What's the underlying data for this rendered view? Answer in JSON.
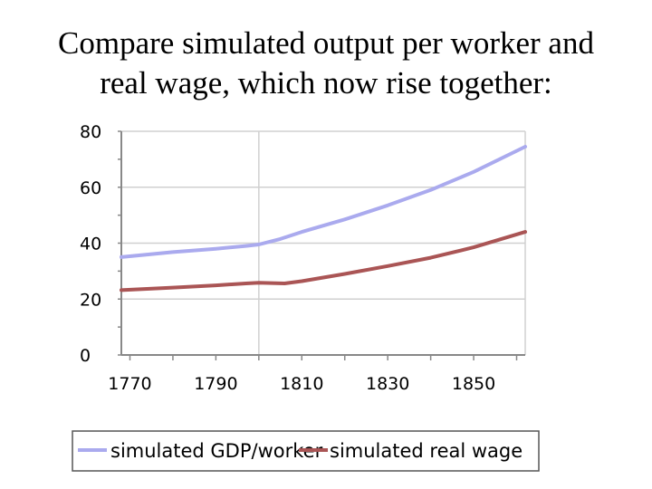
{
  "title_lines": [
    "Compare simulated output per worker and",
    "real wage, which now rise together:"
  ],
  "chart_data": {
    "type": "line",
    "title": "",
    "xlabel": "",
    "ylabel": "",
    "xlim": [
      1768,
      1862
    ],
    "ylim": [
      0,
      80
    ],
    "x_ticks": [
      1770,
      1790,
      1810,
      1830,
      1850
    ],
    "y_ticks": [
      0,
      20,
      40,
      60,
      80
    ],
    "grid": "vertical-and-horizontal",
    "legend_position": "bottom",
    "series": [
      {
        "name": "simulated GDP/worker",
        "color": "#aaaaee",
        "x": [
          1768,
          1780,
          1790,
          1797,
          1800,
          1805,
          1810,
          1820,
          1830,
          1840,
          1850,
          1862
        ],
        "y": [
          35,
          36.8,
          38,
          39,
          39.5,
          41.5,
          44,
          48.5,
          53.5,
          59,
          65.5,
          74.5
        ]
      },
      {
        "name": "simulated real wage",
        "color": "#aa5555",
        "x": [
          1768,
          1780,
          1790,
          1797,
          1800,
          1806,
          1810,
          1820,
          1830,
          1840,
          1850,
          1862
        ],
        "y": [
          23.2,
          24.1,
          24.9,
          25.6,
          25.8,
          25.6,
          26.4,
          29,
          31.8,
          34.8,
          38.5,
          44
        ]
      }
    ]
  }
}
